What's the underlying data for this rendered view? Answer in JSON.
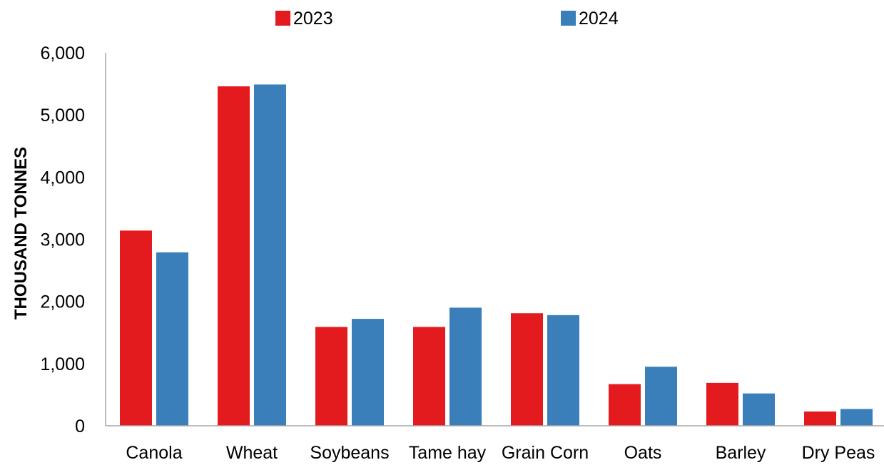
{
  "chart_data": {
    "type": "bar",
    "title": "",
    "xlabel": "",
    "ylabel": "THOUSAND TONNES",
    "ylim": [
      0,
      6000
    ],
    "yticks": [
      "0",
      "1,000",
      "2,000",
      "3,000",
      "4,000",
      "5,000",
      "6,000"
    ],
    "grid": false,
    "legend_position": "top",
    "categories": [
      "Canola",
      "Wheat",
      "Soybeans",
      "Tame hay",
      "Grain Corn",
      "Oats",
      "Barley",
      "Dry Peas"
    ],
    "series": [
      {
        "name": "2023",
        "color": "#e31b1f",
        "values": [
          3140,
          5460,
          1590,
          1590,
          1810,
          670,
          690,
          230
        ]
      },
      {
        "name": "2024",
        "color": "#3a7fba",
        "values": [
          2790,
          5490,
          1720,
          1900,
          1780,
          950,
          520,
          270
        ]
      }
    ]
  }
}
